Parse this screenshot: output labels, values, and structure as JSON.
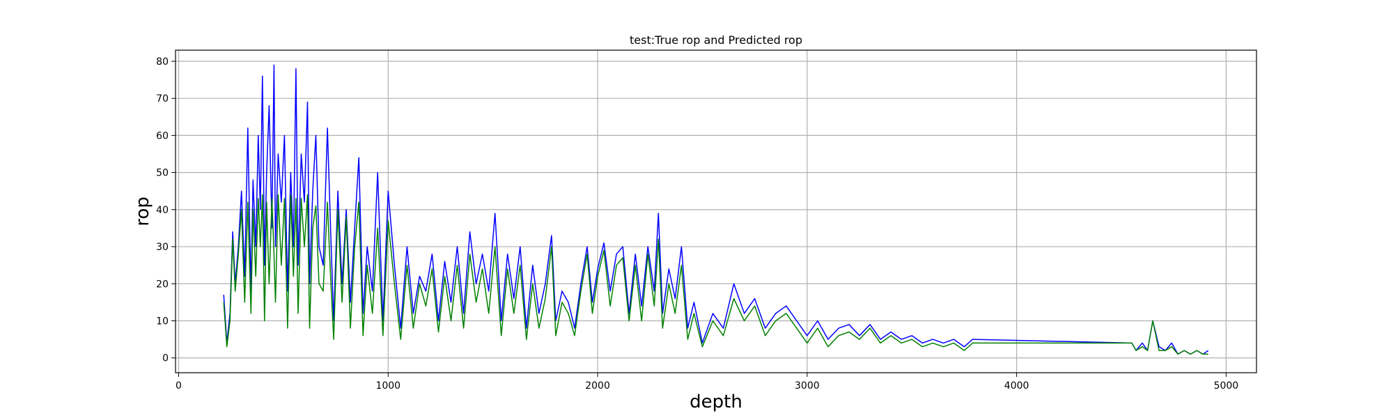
{
  "chart_data": {
    "type": "line",
    "title": "test:True rop and Predicted rop",
    "xlabel": "depth",
    "ylabel": "rop",
    "xlim": [
      -15,
      5145
    ],
    "ylim": [
      -4,
      83
    ],
    "xticks": [
      0,
      1000,
      2000,
      3000,
      4000,
      5000
    ],
    "yticks": [
      0,
      10,
      20,
      30,
      40,
      50,
      60,
      70,
      80
    ],
    "grid": true,
    "legend": "none",
    "series": [
      {
        "color": "#0000ff",
        "role": "true rop",
        "x": [
          215,
          230,
          245,
          258,
          270,
          285,
          300,
          315,
          330,
          345,
          355,
          368,
          380,
          390,
          400,
          410,
          420,
          432,
          445,
          455,
          462,
          475,
          490,
          505,
          520,
          535,
          548,
          560,
          570,
          585,
          600,
          615,
          625,
          640,
          655,
          670,
          690,
          710,
          725,
          740,
          760,
          780,
          800,
          820,
          840,
          860,
          880,
          900,
          925,
          950,
          975,
          1000,
          1030,
          1060,
          1090,
          1120,
          1150,
          1180,
          1210,
          1240,
          1270,
          1300,
          1330,
          1360,
          1390,
          1420,
          1450,
          1480,
          1510,
          1540,
          1570,
          1600,
          1630,
          1660,
          1690,
          1720,
          1750,
          1780,
          1800,
          1830,
          1860,
          1890,
          1920,
          1950,
          1975,
          2000,
          2030,
          2060,
          2090,
          2120,
          2150,
          2180,
          2210,
          2240,
          2270,
          2290,
          2310,
          2340,
          2370,
          2400,
          2430,
          2460,
          2500,
          2550,
          2600,
          2650,
          2700,
          2750,
          2800,
          2850,
          2900,
          2950,
          3000,
          3050,
          3100,
          3150,
          3200,
          3250,
          3300,
          3350,
          3400,
          3450,
          3500,
          3550,
          3600,
          3650,
          3700,
          3750,
          3790,
          4550,
          4570,
          4600,
          4625,
          4650,
          4680,
          4710,
          4740,
          4770,
          4800,
          4830,
          4860,
          4890,
          4915
        ],
        "y": [
          17,
          4,
          12,
          34,
          20,
          30,
          45,
          22,
          62,
          18,
          48,
          30,
          60,
          40,
          76,
          25,
          50,
          68,
          35,
          79,
          30,
          55,
          42,
          60,
          18,
          50,
          30,
          78,
          25,
          55,
          42,
          69,
          20,
          45,
          60,
          30,
          25,
          62,
          35,
          10,
          45,
          20,
          40,
          15,
          35,
          54,
          12,
          30,
          18,
          50,
          10,
          45,
          25,
          8,
          30,
          12,
          22,
          18,
          28,
          10,
          26,
          15,
          30,
          12,
          34,
          20,
          28,
          18,
          39,
          10,
          28,
          16,
          30,
          8,
          25,
          12,
          20,
          33,
          10,
          18,
          15,
          8,
          20,
          30,
          15,
          24,
          31,
          18,
          28,
          30,
          12,
          28,
          14,
          30,
          18,
          39,
          12,
          24,
          16,
          30,
          8,
          15,
          4,
          12,
          8,
          20,
          12,
          16,
          8,
          12,
          14,
          10,
          6,
          10,
          5,
          8,
          9,
          6,
          9,
          5,
          7,
          5,
          6,
          4,
          5,
          4,
          5,
          3,
          5,
          4,
          2,
          4,
          2,
          10,
          3,
          2,
          4,
          1,
          2,
          1,
          2,
          1,
          2
        ]
      },
      {
        "color": "#008000",
        "role": "predicted rop",
        "x": [
          215,
          230,
          245,
          258,
          270,
          285,
          300,
          315,
          330,
          345,
          355,
          368,
          380,
          390,
          400,
          410,
          420,
          432,
          445,
          455,
          462,
          475,
          490,
          505,
          520,
          535,
          548,
          560,
          570,
          585,
          600,
          615,
          625,
          640,
          655,
          670,
          690,
          710,
          725,
          740,
          760,
          780,
          800,
          820,
          840,
          860,
          880,
          900,
          925,
          950,
          975,
          1000,
          1030,
          1060,
          1090,
          1120,
          1150,
          1180,
          1210,
          1240,
          1270,
          1300,
          1330,
          1360,
          1390,
          1420,
          1450,
          1480,
          1510,
          1540,
          1570,
          1600,
          1630,
          1660,
          1690,
          1720,
          1750,
          1780,
          1800,
          1830,
          1860,
          1890,
          1920,
          1950,
          1975,
          2000,
          2030,
          2060,
          2090,
          2120,
          2150,
          2180,
          2210,
          2240,
          2270,
          2290,
          2310,
          2340,
          2370,
          2400,
          2430,
          2460,
          2500,
          2550,
          2600,
          2650,
          2700,
          2750,
          2800,
          2850,
          2900,
          2950,
          3000,
          3050,
          3100,
          3150,
          3200,
          3250,
          3300,
          3350,
          3400,
          3450,
          3500,
          3550,
          3600,
          3650,
          3700,
          3750,
          3790,
          4550,
          4570,
          4600,
          4625,
          4650,
          4680,
          4710,
          4740,
          4770,
          4800,
          4830,
          4860,
          4890,
          4915
        ],
        "y": [
          15,
          3,
          10,
          32,
          18,
          28,
          40,
          15,
          42,
          12,
          40,
          22,
          43,
          30,
          44,
          10,
          42,
          20,
          43,
          28,
          15,
          44,
          25,
          43,
          8,
          44,
          22,
          43,
          12,
          43,
          30,
          44,
          8,
          35,
          41,
          20,
          18,
          42,
          22,
          5,
          40,
          15,
          38,
          8,
          30,
          42,
          6,
          25,
          12,
          35,
          6,
          37,
          20,
          5,
          25,
          8,
          20,
          14,
          24,
          7,
          22,
          10,
          25,
          8,
          28,
          15,
          24,
          12,
          30,
          6,
          24,
          12,
          25,
          5,
          20,
          8,
          16,
          30,
          6,
          15,
          12,
          6,
          18,
          28,
          12,
          22,
          29,
          14,
          25,
          27,
          10,
          25,
          10,
          28,
          14,
          32,
          8,
          20,
          12,
          25,
          5,
          12,
          3,
          10,
          6,
          16,
          10,
          14,
          6,
          10,
          12,
          8,
          4,
          8,
          3,
          6,
          7,
          5,
          8,
          4,
          6,
          4,
          5,
          3,
          4,
          3,
          4,
          2,
          4,
          4,
          2,
          3,
          2,
          10,
          2,
          2,
          3,
          1,
          2,
          1,
          2,
          1,
          1
        ]
      }
    ]
  }
}
